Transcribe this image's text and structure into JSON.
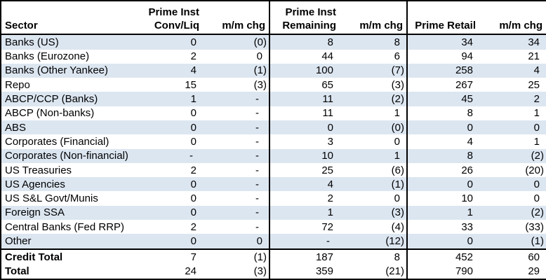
{
  "chart_data": {
    "type": "table",
    "header": [
      {
        "line1": "",
        "line2": "Sector"
      },
      {
        "line1": "Prime Inst",
        "line2": "Conv/Liq"
      },
      {
        "line1": "",
        "line2": "m/m chg"
      },
      {
        "line1": "Prime Inst",
        "line2": "Remaining"
      },
      {
        "line1": "",
        "line2": "m/m chg"
      },
      {
        "line1": "",
        "line2": "Prime Retail"
      },
      {
        "line1": "",
        "line2": "m/m chg"
      }
    ],
    "rows": [
      {
        "sector": "Banks (US)",
        "values": [
          "0",
          "(0)",
          "8",
          "8",
          "34",
          "34"
        ]
      },
      {
        "sector": "Banks (Eurozone)",
        "values": [
          "2",
          "0",
          "44",
          "6",
          "94",
          "21"
        ]
      },
      {
        "sector": "Banks (Other Yankee)",
        "values": [
          "4",
          "(1)",
          "100",
          "(7)",
          "258",
          "4"
        ]
      },
      {
        "sector": "Repo",
        "values": [
          "15",
          "(3)",
          "65",
          "(3)",
          "267",
          "25"
        ]
      },
      {
        "sector": "ABCP/CCP (Banks)",
        "values": [
          "1",
          "-",
          "11",
          "(2)",
          "45",
          "2"
        ]
      },
      {
        "sector": "ABCP (Non-banks)",
        "values": [
          "0",
          "-",
          "11",
          "1",
          "8",
          "1"
        ]
      },
      {
        "sector": "ABS",
        "values": [
          "0",
          "-",
          "0",
          "(0)",
          "0",
          "0"
        ]
      },
      {
        "sector": "Corporates (Financial)",
        "values": [
          "0",
          "-",
          "3",
          "0",
          "4",
          "1"
        ]
      },
      {
        "sector": "Corporates (Non-financial)",
        "values": [
          "-",
          "-",
          "10",
          "1",
          "8",
          "(2)"
        ]
      },
      {
        "sector": "US Treasuries",
        "values": [
          "2",
          "-",
          "25",
          "(6)",
          "26",
          "(20)"
        ]
      },
      {
        "sector": "US Agencies",
        "values": [
          "0",
          "-",
          "4",
          "(1)",
          "0",
          "0"
        ]
      },
      {
        "sector": "US S&L Govt/Munis",
        "values": [
          "0",
          "-",
          "2",
          "0",
          "10",
          "0"
        ]
      },
      {
        "sector": "Foreign SSA",
        "values": [
          "0",
          "-",
          "1",
          "(3)",
          "1",
          "(2)"
        ]
      },
      {
        "sector": "Central Banks (Fed RRP)",
        "values": [
          "2",
          "-",
          "72",
          "(4)",
          "33",
          "(33)"
        ]
      },
      {
        "sector": "Other",
        "values": [
          "0",
          "0",
          "-",
          "(12)",
          "0",
          "(1)"
        ]
      }
    ],
    "totals": [
      {
        "sector": "Credit Total",
        "values": [
          "7",
          "(1)",
          "187",
          "8",
          "452",
          "60"
        ]
      },
      {
        "sector": "Total",
        "values": [
          "24",
          "(3)",
          "359",
          "(21)",
          "790",
          "29"
        ]
      }
    ],
    "layout": {
      "stripe_rows": "odd",
      "group_separators_after_columns": [
        2,
        4
      ]
    }
  },
  "colors": {
    "stripe": "#dce6f1",
    "border": "#000000",
    "text": "#000000",
    "background": "#ffffff"
  }
}
